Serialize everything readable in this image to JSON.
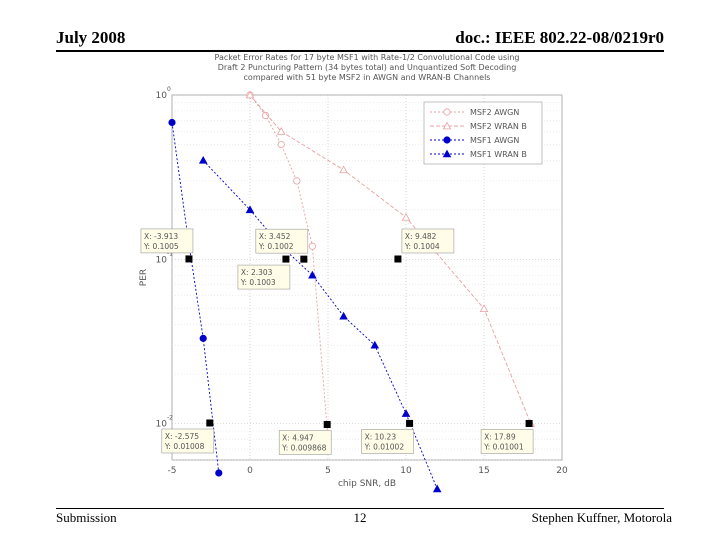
{
  "slide": {
    "date": "July 2008",
    "doc_id": "doc.: IEEE 802.22-08/0219r0",
    "footer_left": "Submission",
    "page_number": "12",
    "footer_right": "Stephen Kuffner, Motorola"
  },
  "chart_data": {
    "type": "line",
    "title_lines": [
      "Packet Error Rates for 17 byte MSF1 with Rate-1/2 Convolutional Code using",
      "Draft 2 Puncturing Pattern (34 bytes total) and Unquantized Soft Decoding",
      "compared with 51 byte MSF2 in AWGN and WRAN-B Channels"
    ],
    "xlabel": "chip SNR, dB",
    "ylabel": "PER",
    "xlim": [
      -5,
      20
    ],
    "ylim": [
      0.006,
      1
    ],
    "yscale": "log",
    "x_ticks": [
      "-5",
      "0",
      "5",
      "10",
      "15",
      "20"
    ],
    "y_ticks": [
      {
        "value": 1,
        "label": "10^0"
      },
      {
        "value": 0.1,
        "label": "10^-1"
      },
      {
        "value": 0.01,
        "label": "10^-2"
      }
    ],
    "grid": true,
    "legend_position": "top-right",
    "series": [
      {
        "name": "MSF2 AWGN",
        "color": "#e8a0a0",
        "marker": "circle-open",
        "dash": "2,2",
        "x": [
          0,
          1,
          2,
          3,
          4,
          5
        ],
        "y": [
          1.0,
          0.75,
          0.5,
          0.3,
          0.12,
          0.008
        ]
      },
      {
        "name": "MSF2 WRAN B",
        "color": "#e8a0a0",
        "marker": "triangle-open",
        "dash": "4,2",
        "x": [
          0,
          2,
          6,
          10,
          15,
          18
        ],
        "y": [
          1.0,
          0.6,
          0.35,
          0.18,
          0.05,
          0.01
        ]
      },
      {
        "name": "MSF1 AWGN",
        "color": "#0000cc",
        "marker": "circle",
        "dash": "2,2",
        "x": [
          -5,
          -4,
          -3,
          -2
        ],
        "y": [
          0.68,
          0.14,
          0.033,
          0.005
        ]
      },
      {
        "name": "MSF1 WRAN B",
        "color": "#0000cc",
        "marker": "triangle",
        "dash": "2,2",
        "x": [
          -3,
          0,
          2,
          4,
          6,
          8,
          10,
          12
        ],
        "y": [
          0.4,
          0.2,
          0.12,
          0.08,
          0.045,
          0.03,
          0.0115,
          0.004
        ]
      }
    ],
    "annotations": [
      {
        "x": -3.913,
        "y": 0.1005,
        "label_x": "X: -3.913",
        "label_y": "Y: 0.1005",
        "box": "above-left"
      },
      {
        "x": 3.452,
        "y": 0.1002,
        "label_x": "X: 3.452",
        "label_y": "Y: 0.1002",
        "box": "above-left"
      },
      {
        "x": 9.482,
        "y": 0.1004,
        "label_x": "X: 9.482",
        "label_y": "Y: 0.1004",
        "box": "above-right"
      },
      {
        "x": 2.303,
        "y": 0.1003,
        "label_x": "X: 2.303",
        "label_y": "Y: 0.1003",
        "box": "below-left"
      },
      {
        "x": -2.575,
        "y": 0.01008,
        "label_x": "X: -2.575",
        "label_y": "Y: 0.01008",
        "box": "below-left"
      },
      {
        "x": 4.947,
        "y": 0.009868,
        "label_x": "X: 4.947",
        "label_y": "Y: 0.009868",
        "box": "below-left"
      },
      {
        "x": 10.23,
        "y": 0.01002,
        "label_x": "X: 10.23",
        "label_y": "Y: 0.01002",
        "box": "below-left"
      },
      {
        "x": 17.89,
        "y": 0.01001,
        "label_x": "X: 17.89",
        "label_y": "Y: 0.01001",
        "box": "below-left"
      }
    ]
  }
}
